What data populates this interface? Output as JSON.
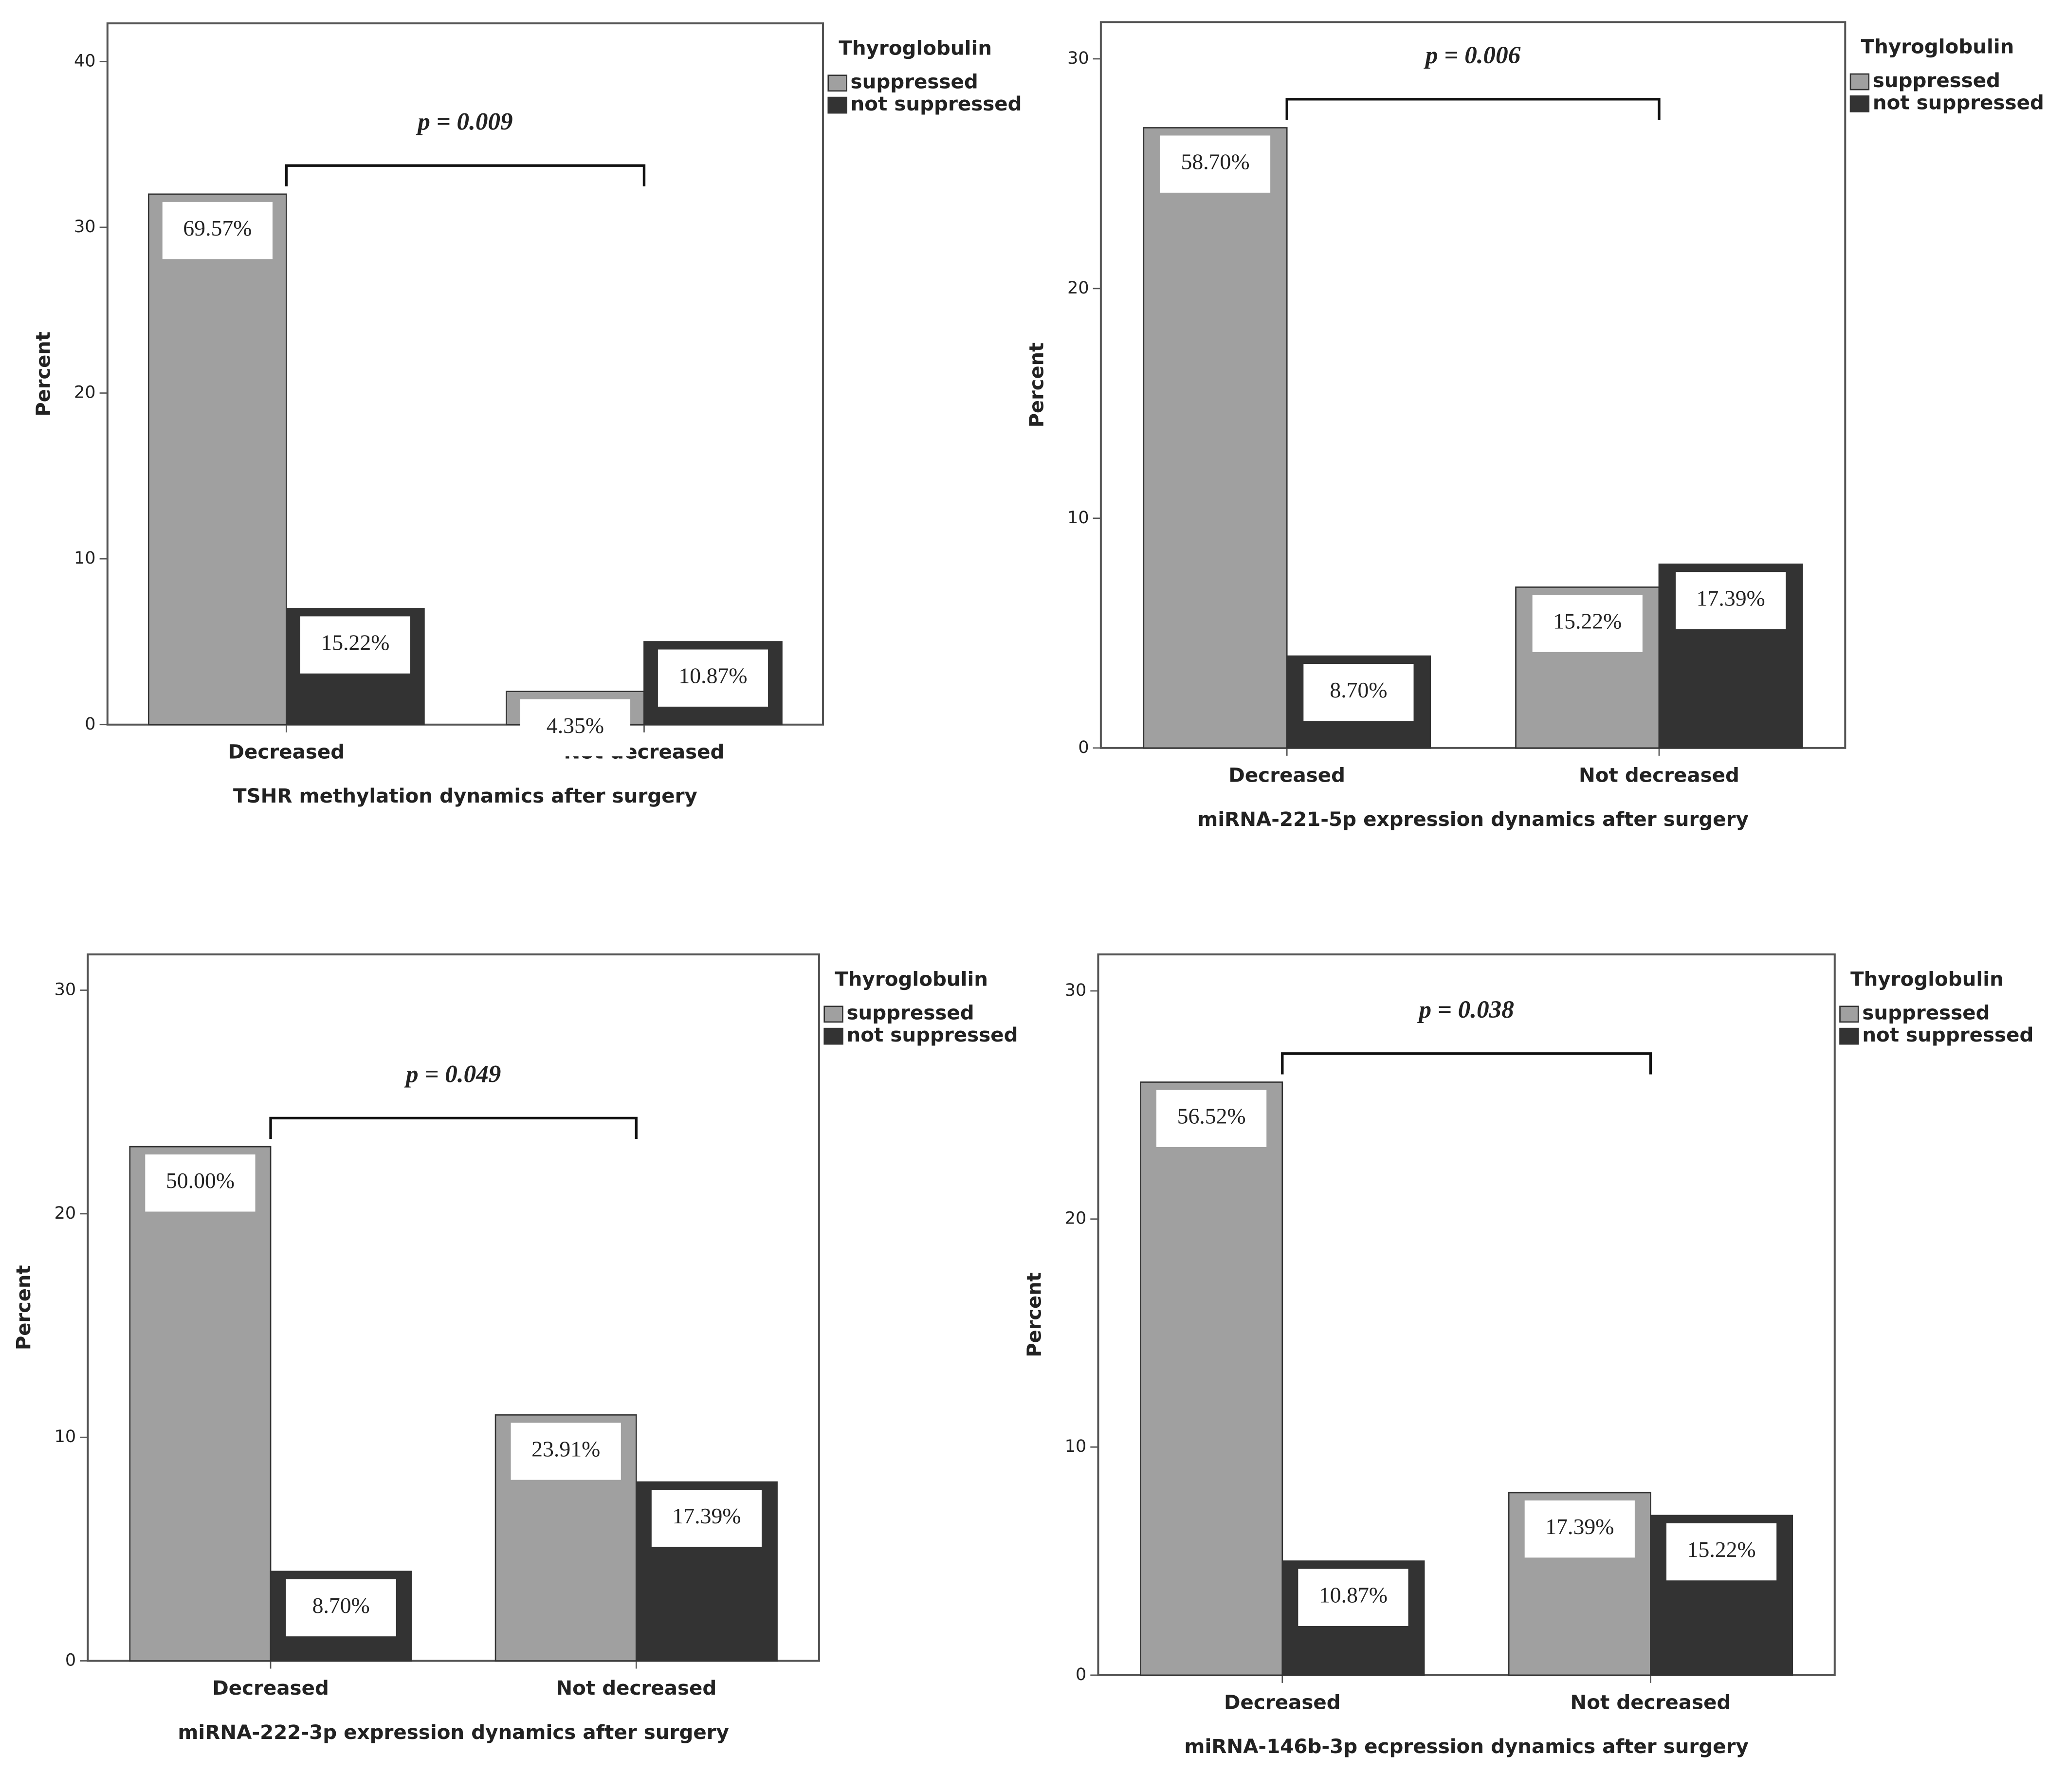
{
  "chart_data": [
    {
      "type": "bar",
      "x_label": "TSHR methylation dynamics after surgery",
      "y_label": "Percent",
      "legend_title": "Thyroglobulin",
      "annotation": "p = 0.009",
      "categories": [
        "Decreased",
        "Not decreased"
      ],
      "series": [
        {
          "name": "suppressed",
          "color": "#a0a0a0",
          "values": [
            32,
            2
          ],
          "bar_labels": [
            "69.57%",
            "4.35%"
          ]
        },
        {
          "name": "not suppressed",
          "color": "#333333",
          "values": [
            7,
            5
          ],
          "bar_labels": [
            "15.22%",
            "10.87%"
          ]
        }
      ],
      "ylim": [
        0,
        42.3
      ],
      "yticks": [
        0,
        10,
        20,
        30,
        40
      ]
    },
    {
      "type": "bar",
      "x_label": "miRNA-221-5p expression dynamics after surgery",
      "y_label": "Percent",
      "legend_title": "Thyroglobulin",
      "annotation": "p = 0.006",
      "categories": [
        "Decreased",
        "Not decreased"
      ],
      "series": [
        {
          "name": "suppressed",
          "color": "#a0a0a0",
          "values": [
            27,
            7
          ],
          "bar_labels": [
            "58.70%",
            "15.22%"
          ]
        },
        {
          "name": "not suppressed",
          "color": "#333333",
          "values": [
            4,
            8
          ],
          "bar_labels": [
            "8.70%",
            "17.39%"
          ]
        }
      ],
      "ylim": [
        0,
        31.6
      ],
      "yticks": [
        0,
        10,
        20,
        30
      ]
    },
    {
      "type": "bar",
      "x_label": "miRNA-222-3p  expression dynamics after surgery",
      "y_label": "Percent",
      "legend_title": "Thyroglobulin",
      "annotation": "p = 0.049",
      "categories": [
        "Decreased",
        "Not decreased"
      ],
      "series": [
        {
          "name": "suppressed",
          "color": "#a0a0a0",
          "values": [
            23,
            11
          ],
          "bar_labels": [
            "50.00%",
            "23.91%"
          ]
        },
        {
          "name": "not suppressed",
          "color": "#333333",
          "values": [
            4,
            8
          ],
          "bar_labels": [
            "8.70%",
            "17.39%"
          ]
        }
      ],
      "ylim": [
        0,
        31.6
      ],
      "yticks": [
        0,
        10,
        20,
        30
      ]
    },
    {
      "type": "bar",
      "x_label": "miRNA-146b-3p ecpression dynamics after surgery",
      "y_label": "Percent",
      "legend_title": "Thyroglobulin",
      "annotation": "p = 0.038",
      "categories": [
        "Decreased",
        "Not decreased"
      ],
      "series": [
        {
          "name": "suppressed",
          "color": "#a0a0a0",
          "values": [
            26,
            8
          ],
          "bar_labels": [
            "56.52%",
            "17.39%"
          ]
        },
        {
          "name": "not suppressed",
          "color": "#333333",
          "values": [
            5,
            7
          ],
          "bar_labels": [
            "10.87%",
            "15.22%"
          ]
        }
      ],
      "ylim": [
        0,
        31.6
      ],
      "yticks": [
        0,
        10,
        20,
        30
      ]
    }
  ]
}
